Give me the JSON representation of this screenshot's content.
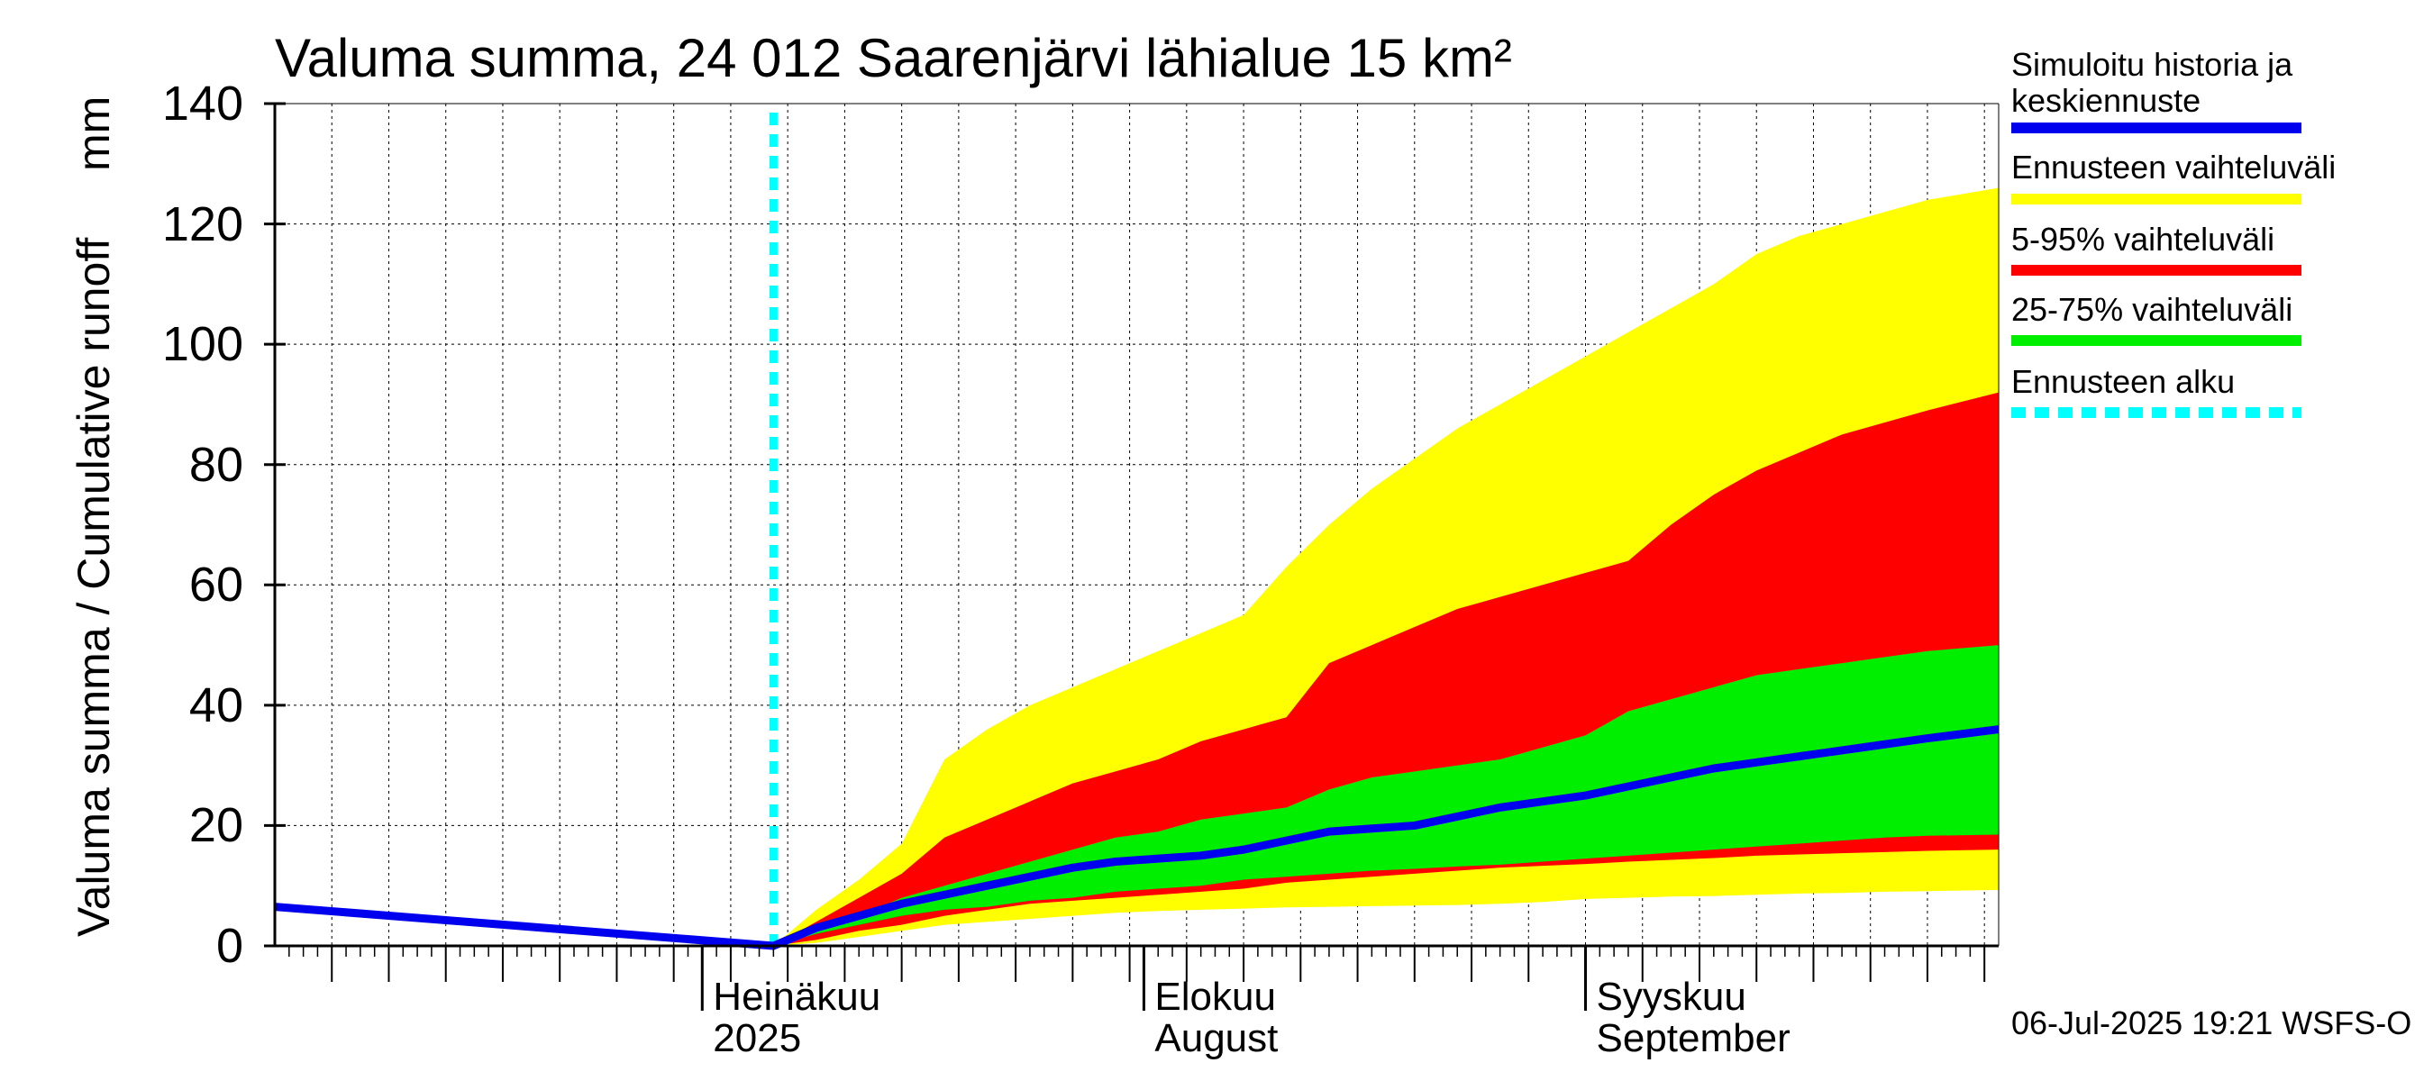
{
  "title": "Valuma summa, 24 012 Saarenjärvi lähialue 15 km²",
  "ylabel": "Valuma summa / Cumulative runoff",
  "yunit": "mm",
  "footer": "06-Jul-2025 19:21 WSFS-O",
  "colors": {
    "history": "#0000ee",
    "range_full": "#ffff00",
    "range_5_95": "#ff0000",
    "range_25_75": "#00ee00",
    "forecast_start": "#00ffff"
  },
  "legend": [
    {
      "id": "history",
      "label": "Simuloitu historia ja keskiennuste",
      "color": "#0000ee"
    },
    {
      "id": "full",
      "label": "Ennusteen vaihteluväli",
      "color": "#ffff00"
    },
    {
      "id": "p5_95",
      "label": "5-95% vaihteluväli",
      "color": "#ff0000"
    },
    {
      "id": "p25_75",
      "label": "25-75% vaihteluväli",
      "color": "#00ee00"
    },
    {
      "id": "start",
      "label": "Ennusteen alku",
      "color": "#00ffff"
    }
  ],
  "chart_data": {
    "type": "area",
    "title": "Valuma summa, 24 012 Saarenjärvi lähialue 15 km²",
    "ylabel": "Valuma summa / Cumulative runoff",
    "yunit": "mm",
    "ylim": [
      0,
      140
    ],
    "yticks": [
      0,
      20,
      40,
      60,
      80,
      100,
      120,
      140
    ],
    "xlim": [
      "2025-06-01",
      "2025-09-30"
    ],
    "grid": true,
    "legend_position": "right",
    "month_labels": [
      {
        "date": "2025-07-01",
        "line1": "Heinäkuu",
        "line2": "2025"
      },
      {
        "date": "2025-08-01",
        "line1": "Elokuu",
        "line2": "August"
      },
      {
        "date": "2025-09-01",
        "line1": "Syyskuu",
        "line2": "September"
      }
    ],
    "forecast_start": "2025-07-06",
    "history": [
      {
        "date": "2025-06-01",
        "value": 6.5
      },
      {
        "date": "2025-07-06",
        "value": 0
      }
    ],
    "forecast_dates": [
      "2025-07-06",
      "2025-07-09",
      "2025-07-12",
      "2025-07-15",
      "2025-07-18",
      "2025-07-21",
      "2025-07-24",
      "2025-07-27",
      "2025-07-30",
      "2025-08-02",
      "2025-08-05",
      "2025-08-08",
      "2025-08-11",
      "2025-08-14",
      "2025-08-17",
      "2025-08-20",
      "2025-08-23",
      "2025-08-26",
      "2025-08-29",
      "2025-09-01",
      "2025-09-04",
      "2025-09-07",
      "2025-09-10",
      "2025-09-13",
      "2025-09-16",
      "2025-09-19",
      "2025-09-22",
      "2025-09-25",
      "2025-09-30"
    ],
    "series": [
      {
        "name": "Ennusteen vaihteluväli",
        "color": "#ffff00",
        "upper": [
          0,
          6,
          11,
          17,
          31,
          36,
          40,
          43,
          46,
          49,
          52,
          55,
          63,
          70,
          76,
          81,
          86,
          90,
          94,
          98,
          102,
          106,
          110,
          115,
          118,
          120,
          122,
          124,
          126
        ],
        "lower": [
          0,
          0.5,
          1.5,
          2.5,
          3.5,
          4,
          4.5,
          5,
          5.5,
          5.8,
          6,
          6.2,
          6.4,
          6.5,
          6.6,
          6.7,
          6.8,
          7,
          7.3,
          7.8,
          8,
          8.2,
          8.3,
          8.5,
          8.7,
          8.8,
          9,
          9.1,
          9.3
        ]
      },
      {
        "name": "5-95% vaihteluväli",
        "color": "#ff0000",
        "upper": [
          0,
          4,
          8,
          12,
          18,
          21,
          24,
          27,
          29,
          31,
          34,
          36,
          38,
          47,
          50,
          53,
          56,
          58,
          60,
          62,
          64,
          70,
          75,
          79,
          82,
          85,
          87,
          89,
          92
        ],
        "lower": [
          0,
          1,
          2.5,
          3.5,
          5,
          6,
          7,
          7.5,
          8,
          8.5,
          9,
          9.5,
          10.5,
          11,
          11.5,
          12,
          12.5,
          13,
          13.3,
          13.6,
          14,
          14.3,
          14.6,
          15,
          15.2,
          15.4,
          15.6,
          15.8,
          16
        ]
      },
      {
        "name": "25-75% vaihteluväli",
        "color": "#00ee00",
        "upper": [
          0,
          3,
          5,
          8,
          10,
          12,
          14,
          16,
          18,
          19,
          21,
          22,
          23,
          26,
          28,
          29,
          30,
          31,
          33,
          35,
          39,
          41,
          43,
          45,
          46,
          47,
          48,
          49,
          50
        ],
        "lower": [
          0,
          2,
          3.5,
          5,
          6,
          6.5,
          7.5,
          8,
          9,
          9.5,
          10,
          11,
          11.5,
          12,
          12.5,
          12.8,
          13.2,
          13.5,
          14,
          14.5,
          15,
          15.5,
          16,
          16.5,
          17,
          17.5,
          18,
          18.3,
          18.5
        ]
      },
      {
        "name": "Simuloitu historia ja keskiennuste",
        "color": "#0000ee",
        "values": [
          0,
          3,
          5,
          7,
          8.5,
          10,
          11.5,
          13,
          14,
          14.5,
          15,
          16,
          17.5,
          19,
          19.5,
          20,
          21.5,
          23,
          24,
          25,
          26.5,
          28,
          29.5,
          30.5,
          31.5,
          32.5,
          33.5,
          34.5,
          36
        ]
      }
    ]
  }
}
